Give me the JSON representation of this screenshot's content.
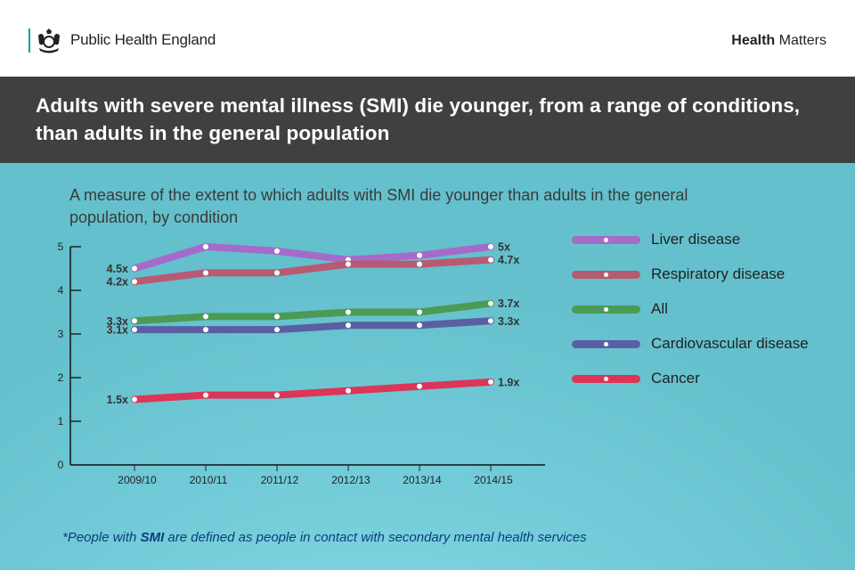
{
  "header": {
    "org_name": "Public Health England",
    "brand_bold": "Health",
    "brand_rest": " Matters",
    "logo_icon": "royal-crest-icon"
  },
  "title": "Adults with severe mental illness (SMI) die younger, from a range of conditions, than adults in the general population",
  "subtitle": "A measure of the extent to which adults with SMI die younger than adults in the general population, by condition",
  "footnote": {
    "prefix": "*People with ",
    "bold": "SMI",
    "suffix": " are defined as people in contact with secondary mental health services"
  },
  "colors": {
    "liver": "#a66ac9",
    "respiratory": "#b85a72",
    "all": "#4b9a55",
    "cardiovascular": "#5a5fa3",
    "cancer": "#dc3557",
    "title_band": "#404040",
    "accent": "#00a49a",
    "footnote": "#0b3f7a"
  },
  "chart_data": {
    "type": "line",
    "title": "A measure of the extent to which adults with SMI die younger than adults in the general population, by condition",
    "xlabel": "",
    "ylabel": "",
    "categories": [
      "2009/10",
      "2010/11",
      "2011/12",
      "2012/13",
      "2013/14",
      "2014/15"
    ],
    "ylim": [
      0,
      5
    ],
    "yticks": [
      0,
      1,
      2,
      3,
      4,
      5
    ],
    "grid": false,
    "legend_position": "right",
    "series": [
      {
        "key": "liver",
        "name": "Liver disease",
        "values": [
          4.5,
          5.0,
          4.9,
          4.7,
          4.8,
          5.0
        ],
        "start_label": "4.5x",
        "end_label": "5x"
      },
      {
        "key": "respiratory",
        "name": "Respiratory disease",
        "values": [
          4.2,
          4.4,
          4.4,
          4.6,
          4.6,
          4.7
        ],
        "start_label": "4.2x",
        "end_label": "4.7x"
      },
      {
        "key": "all",
        "name": "All",
        "values": [
          3.3,
          3.4,
          3.4,
          3.5,
          3.5,
          3.7
        ],
        "start_label": "3.3x",
        "end_label": "3.7x"
      },
      {
        "key": "cardiovascular",
        "name": "Cardiovascular disease",
        "values": [
          3.1,
          3.1,
          3.1,
          3.2,
          3.2,
          3.3
        ],
        "start_label": "3.1x",
        "end_label": "3.3x"
      },
      {
        "key": "cancer",
        "name": "Cancer",
        "values": [
          1.5,
          1.6,
          1.6,
          1.7,
          1.8,
          1.9
        ],
        "start_label": "1.5x",
        "end_label": "1.9x"
      }
    ]
  }
}
